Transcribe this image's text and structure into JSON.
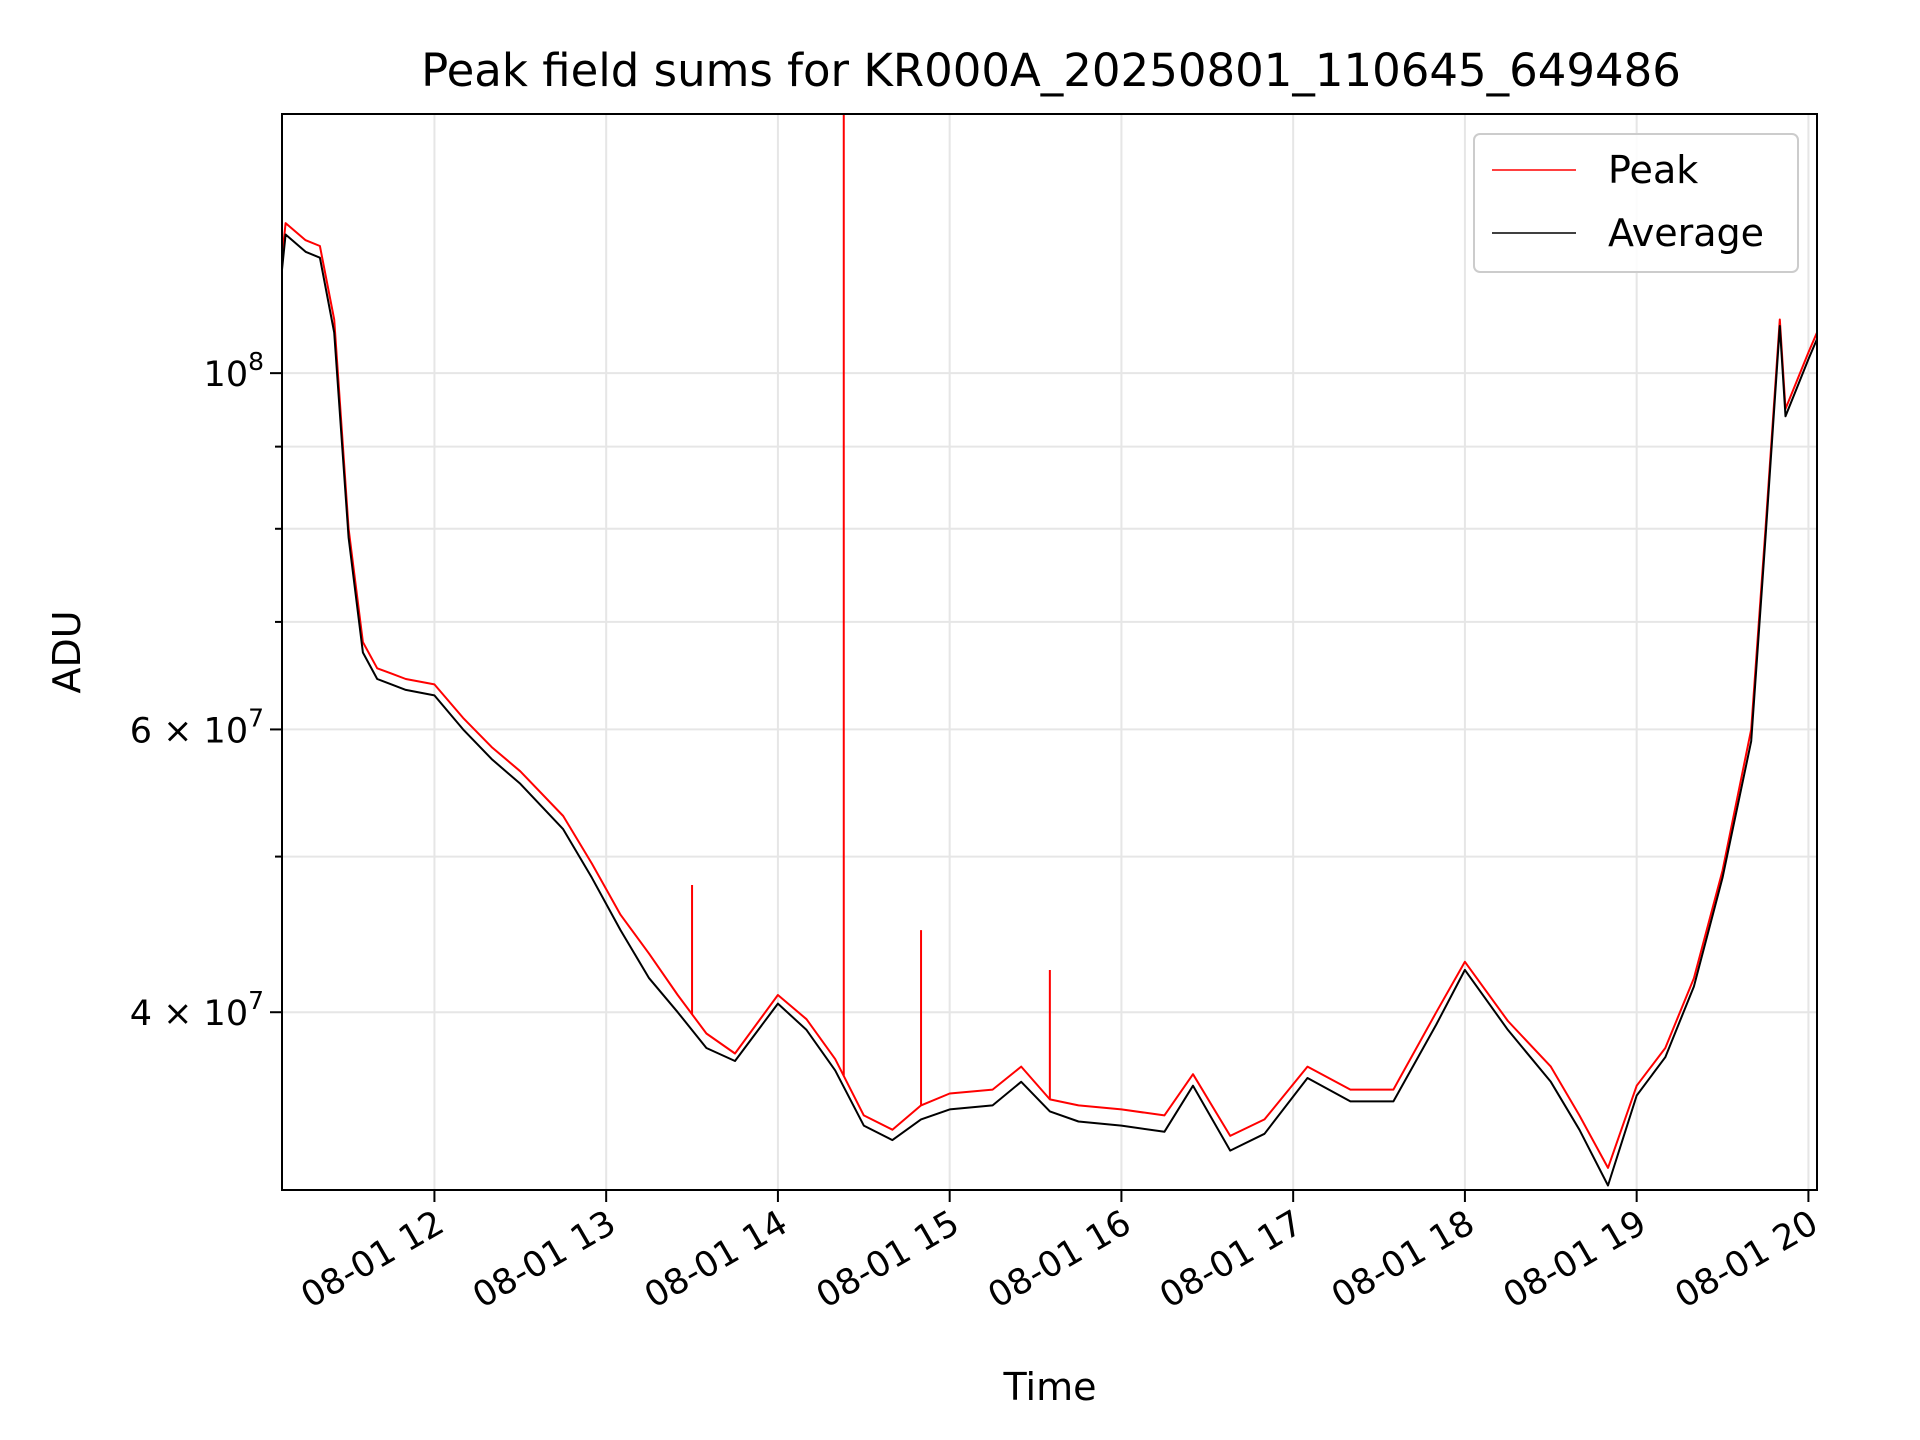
{
  "chart_data": {
    "type": "line",
    "title": "Peak field sums for KR000A_20250801_110645_649486",
    "xlabel": "Time",
    "ylabel": "ADU",
    "y_scale": "log",
    "ylim": [
      31000000,
      145000000
    ],
    "xlim": [
      "2025-08-01 11:06:45",
      "2025-08-01 20:03:00"
    ],
    "grid": true,
    "legend_position": "top-right",
    "x_tick_labels": [
      "08-01 12",
      "08-01 13",
      "08-01 14",
      "08-01 15",
      "08-01 16",
      "08-01 17",
      "08-01 18",
      "08-01 19",
      "08-01 20"
    ],
    "x_tick_values": [
      "2025-08-01 12:00",
      "2025-08-01 13:00",
      "2025-08-01 14:00",
      "2025-08-01 15:00",
      "2025-08-01 16:00",
      "2025-08-01 17:00",
      "2025-08-01 18:00",
      "2025-08-01 19:00",
      "2025-08-01 20:00"
    ],
    "y_tick_labels": [
      {
        "value": 100000000,
        "mantissa": "",
        "base": "10",
        "exp": "8"
      },
      {
        "value": 60000000,
        "mantissa": "6 × ",
        "base": "10",
        "exp": "7"
      },
      {
        "value": 40000000,
        "mantissa": "4 × ",
        "base": "10",
        "exp": "7"
      }
    ],
    "y_minor_ticks": [
      50000000,
      70000000,
      80000000,
      90000000
    ],
    "x": [
      "2025-08-01 11:06:45",
      "2025-08-01 11:08",
      "2025-08-01 11:15",
      "2025-08-01 11:20",
      "2025-08-01 11:25",
      "2025-08-01 11:30",
      "2025-08-01 11:35",
      "2025-08-01 11:40",
      "2025-08-01 11:45",
      "2025-08-01 11:50",
      "2025-08-01 12:00",
      "2025-08-01 12:10",
      "2025-08-01 12:20",
      "2025-08-01 12:30",
      "2025-08-01 12:45",
      "2025-08-01 12:55",
      "2025-08-01 13:05",
      "2025-08-01 13:15",
      "2025-08-01 13:25",
      "2025-08-01 13:35",
      "2025-08-01 13:45",
      "2025-08-01 14:00",
      "2025-08-01 14:10",
      "2025-08-01 14:20",
      "2025-08-01 14:30",
      "2025-08-01 14:40",
      "2025-08-01 14:50",
      "2025-08-01 15:00",
      "2025-08-01 15:15",
      "2025-08-01 15:25",
      "2025-08-01 15:35",
      "2025-08-01 15:45",
      "2025-08-01 16:00",
      "2025-08-01 16:15",
      "2025-08-01 16:25",
      "2025-08-01 16:38",
      "2025-08-01 16:50",
      "2025-08-01 17:05",
      "2025-08-01 17:20",
      "2025-08-01 17:35",
      "2025-08-01 17:50",
      "2025-08-01 18:00",
      "2025-08-01 18:15",
      "2025-08-01 18:30",
      "2025-08-01 18:40",
      "2025-08-01 18:50",
      "2025-08-01 19:00",
      "2025-08-01 19:10",
      "2025-08-01 19:20",
      "2025-08-01 19:30",
      "2025-08-01 19:40",
      "2025-08-01 19:45",
      "2025-08-01 19:50",
      "2025-08-01 19:52",
      "2025-08-01 20:00",
      "2025-08-01 20:03"
    ],
    "series": [
      {
        "name": "Peak",
        "color": "#ff0000",
        "values": [
          118000000,
          124000000,
          121000000,
          120000000,
          108000000,
          80000000,
          68000000,
          65500000,
          65000000,
          64500000,
          64000000,
          61000000,
          58500000,
          56500000,
          53000000,
          49500000,
          46000000,
          43500000,
          41000000,
          38800000,
          37700000,
          41000000,
          39600000,
          37400000,
          34500000,
          33800000,
          35000000,
          35600000,
          35800000,
          37000000,
          35300000,
          35000000,
          34800000,
          34500000,
          36600000,
          33500000,
          34300000,
          37000000,
          35800000,
          35800000,
          40000000,
          43000000,
          39500000,
          37000000,
          34500000,
          32000000,
          36000000,
          38000000,
          42000000,
          49000000,
          60000000,
          80000000,
          108000000,
          95000000,
          103000000,
          106000000
        ],
        "spikes": [
          {
            "x": "2025-08-01 14:23",
            "value": 145000000
          },
          {
            "x": "2025-08-01 14:50",
            "value": 45000000
          },
          {
            "x": "2025-08-01 13:30",
            "value": 48000000
          },
          {
            "x": "2025-08-01 15:35",
            "value": 42500000
          }
        ]
      },
      {
        "name": "Average",
        "color": "#000000",
        "values": [
          116000000,
          122000000,
          119000000,
          118000000,
          106000000,
          79000000,
          67000000,
          64500000,
          64000000,
          63500000,
          63000000,
          60000000,
          57500000,
          55500000,
          52000000,
          48500000,
          45000000,
          42000000,
          40000000,
          38000000,
          37300000,
          40500000,
          39000000,
          36800000,
          34000000,
          33300000,
          34300000,
          34800000,
          35000000,
          36200000,
          34700000,
          34200000,
          34000000,
          33700000,
          36000000,
          32800000,
          33600000,
          36400000,
          35200000,
          35200000,
          39300000,
          42500000,
          39000000,
          36200000,
          33800000,
          31200000,
          35500000,
          37500000,
          41500000,
          48500000,
          59000000,
          79000000,
          107000000,
          94000000,
          102000000,
          105000000
        ]
      }
    ]
  }
}
